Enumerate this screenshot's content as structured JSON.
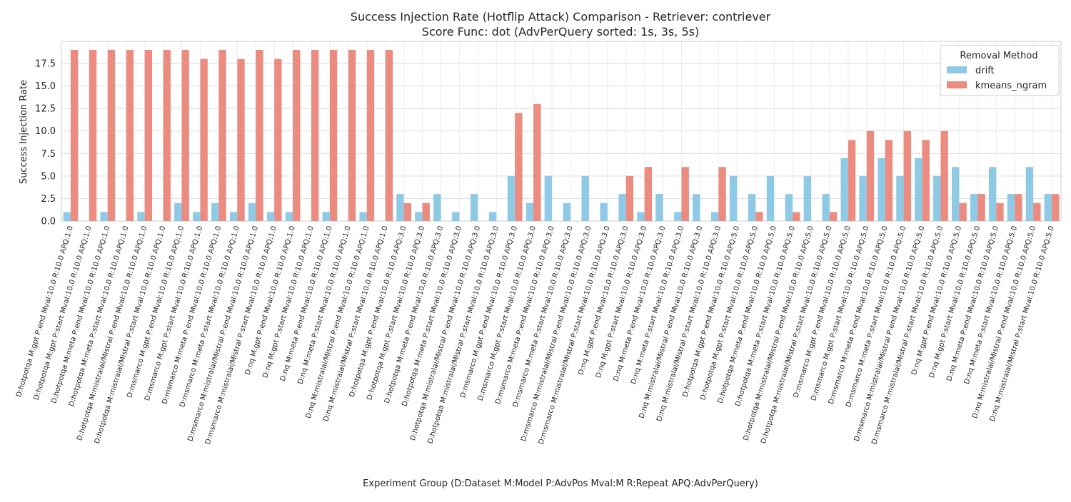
{
  "chart_data": {
    "type": "bar",
    "title": "Success Injection Rate (Hotflip Attack) Comparison - Retriever: contriever",
    "subtitle": "Score Func: dot (AdvPerQuery sorted: 1s, 3s, 5s)",
    "xlabel": "Experiment Group (D:Dataset M:Model P:AdvPos Mval:M R:Repeat APQ:AdvPerQuery)",
    "ylabel": "Success Injection Rate",
    "ylim": [
      0,
      19.95
    ],
    "yticks": [
      "0.0",
      "2.5",
      "5.0",
      "7.5",
      "10.0",
      "12.5",
      "15.0",
      "17.5"
    ],
    "grid": true,
    "legend": {
      "title": "Removal Method",
      "position": "top-right"
    },
    "categories": [
      "D:hotpotqa M:gpt P:end Mval:10.0 R:10.0 APQ:1.0",
      "D:hotpotqa M:gpt P:start Mval:10.0 R:10.0 APQ:1.0",
      "D:hotpotqa M:meta P:end Mval:10.0 R:10.0 APQ:1.0",
      "D:hotpotqa M:meta P:start Mval:10.0 R:10.0 APQ:1.0",
      "D:hotpotqa M:mistralai/Mistral P:end Mval:10.0 R:10.0 APQ:1.0",
      "D:hotpotqa M:mistralai/Mistral P:start Mval:10.0 R:10.0 APQ:1.0",
      "D:msmarco M:gpt P:end Mval:10.0 R:10.0 APQ:1.0",
      "D:msmarco M:gpt P:start Mval:10.0 R:10.0 APQ:1.0",
      "D:msmarco M:meta P:end Mval:10.0 R:10.0 APQ:1.0",
      "D:msmarco M:meta P:start Mval:10.0 R:10.0 APQ:1.0",
      "D:msmarco M:mistralai/Mistral P:end Mval:10.0 R:10.0 APQ:1.0",
      "D:msmarco M:mistralai/Mistral P:start Mval:10.0 R:10.0 APQ:1.0",
      "D:nq M:gpt P:end Mval:10.0 R:10.0 APQ:1.0",
      "D:nq M:gpt P:start Mval:10.0 R:10.0 APQ:1.0",
      "D:nq M:meta P:end Mval:10.0 R:10.0 APQ:1.0",
      "D:nq M:meta P:start Mval:10.0 R:10.0 APQ:1.0",
      "D:nq M:mistralai/Mistral P:end Mval:10.0 R:10.0 APQ:1.0",
      "D:nq M:mistralai/Mistral P:start Mval:10.0 R:10.0 APQ:1.0",
      "D:hotpotqa M:gpt P:end Mval:10.0 R:10.0 APQ:3.0",
      "D:hotpotqa M:gpt P:start Mval:10.0 R:10.0 APQ:3.0",
      "D:hotpotqa M:meta P:end Mval:10.0 R:10.0 APQ:3.0",
      "D:hotpotqa M:meta P:start Mval:10.0 R:10.0 APQ:3.0",
      "D:hotpotqa M:mistralai/Mistral P:end Mval:10.0 R:10.0 APQ:3.0",
      "D:hotpotqa M:mistralai/Mistral P:start Mval:10.0 R:10.0 APQ:3.0",
      "D:msmarco M:gpt P:end Mval:10.0 R:10.0 APQ:3.0",
      "D:msmarco M:gpt P:start Mval:10.0 R:10.0 APQ:3.0",
      "D:msmarco M:meta P:end Mval:10.0 R:10.0 APQ:3.0",
      "D:msmarco M:meta P:start Mval:10.0 R:10.0 APQ:3.0",
      "D:msmarco M:mistralai/Mistral P:end Mval:10.0 R:10.0 APQ:3.0",
      "D:msmarco M:mistralai/Mistral P:start Mval:10.0 R:10.0 APQ:3.0",
      "D:nq M:gpt P:end Mval:10.0 R:10.0 APQ:3.0",
      "D:nq M:gpt P:start Mval:10.0 R:10.0 APQ:3.0",
      "D:nq M:meta P:end Mval:10.0 R:10.0 APQ:3.0",
      "D:nq M:meta P:start Mval:10.0 R:10.0 APQ:3.0",
      "D:nq M:mistralai/Mistral P:end Mval:10.0 R:10.0 APQ:3.0",
      "D:nq M:mistralai/Mistral P:start Mval:10.0 R:10.0 APQ:3.0",
      "D:hotpotqa M:gpt P:end Mval:10.0 R:10.0 APQ:5.0",
      "D:hotpotqa M:gpt P:start Mval:10.0 R:10.0 APQ:5.0",
      "D:hotpotqa M:meta P:end Mval:10.0 R:10.0 APQ:5.0",
      "D:hotpotqa M:meta P:start Mval:10.0 R:10.0 APQ:5.0",
      "D:hotpotqa M:mistralai/Mistral P:end Mval:10.0 R:10.0 APQ:5.0",
      "D:hotpotqa M:mistralai/Mistral P:start Mval:10.0 R:10.0 APQ:5.0",
      "D:msmarco M:gpt P:end Mval:10.0 R:10.0 APQ:5.0",
      "D:msmarco M:gpt P:start Mval:10.0 R:10.0 APQ:5.0",
      "D:msmarco M:meta P:end Mval:10.0 R:10.0 APQ:5.0",
      "D:msmarco M:meta P:start Mval:10.0 R:10.0 APQ:5.0",
      "D:msmarco M:mistralai/Mistral P:end Mval:10.0 R:10.0 APQ:5.0",
      "D:msmarco M:mistralai/Mistral P:start Mval:10.0 R:10.0 APQ:5.0",
      "D:nq M:gpt P:end Mval:10.0 R:10.0 APQ:5.0",
      "D:nq M:gpt P:start Mval:10.0 R:10.0 APQ:5.0",
      "D:nq M:meta P:end Mval:10.0 R:10.0 APQ:5.0",
      "D:nq M:meta P:start Mval:10.0 R:10.0 APQ:5.0",
      "D:nq M:mistralai/Mistral P:end Mval:10.0 R:10.0 APQ:5.0",
      "D:nq M:mistralai/Mistral P:start Mval:10.0 R:10.0 APQ:5.0"
    ],
    "series": [
      {
        "name": "drift",
        "color": "#8ecae6",
        "values": [
          1,
          0,
          1,
          0,
          1,
          0,
          2,
          1,
          2,
          1,
          2,
          1,
          1,
          0,
          1,
          0,
          1,
          0,
          3,
          1,
          3,
          1,
          3,
          1,
          5,
          2,
          5,
          2,
          5,
          2,
          3,
          1,
          3,
          1,
          3,
          1,
          5,
          3,
          5,
          3,
          5,
          3,
          7,
          5,
          7,
          5,
          7,
          5,
          6,
          3,
          6,
          3,
          6,
          3
        ]
      },
      {
        "name": "kmeans_ngram",
        "color": "#ec8b80",
        "values": [
          19,
          19,
          19,
          19,
          19,
          19,
          19,
          18,
          19,
          18,
          19,
          18,
          19,
          19,
          19,
          19,
          19,
          19,
          2,
          2,
          0,
          0,
          0,
          0,
          12,
          13,
          0,
          0,
          0,
          0,
          5,
          6,
          0,
          6,
          0,
          6,
          0,
          1,
          0,
          1,
          0,
          1,
          9,
          10,
          9,
          10,
          9,
          10,
          2,
          3,
          2,
          3,
          2,
          3
        ]
      }
    ]
  }
}
